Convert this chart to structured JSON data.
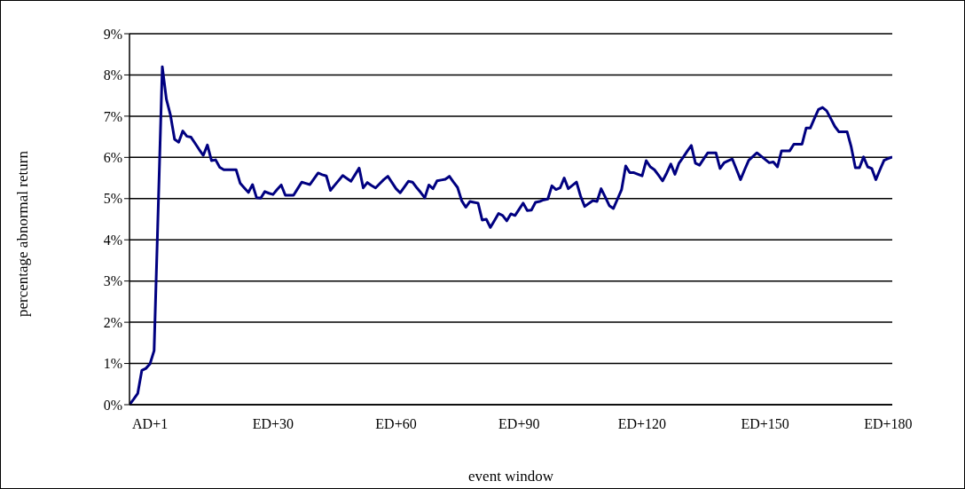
{
  "chart_data": {
    "type": "line",
    "xlabel": "event window",
    "ylabel": "percentage abnormal return",
    "color": "#000080",
    "grid": "y",
    "categories": [
      null,
      null,
      null,
      null,
      null,
      "AD+1",
      null,
      null,
      null,
      null,
      null,
      null,
      null,
      null,
      null,
      null,
      null,
      null,
      null,
      null,
      null,
      null,
      null,
      null,
      null,
      null,
      null,
      null,
      null,
      null,
      null,
      null,
      null,
      null,
      null,
      "ED+30",
      null,
      null,
      null,
      null,
      null,
      null,
      null,
      null,
      null,
      null,
      null,
      null,
      null,
      null,
      null,
      null,
      null,
      null,
      null,
      null,
      null,
      null,
      null,
      null,
      null,
      null,
      null,
      null,
      null,
      "ED+60",
      null,
      null,
      null,
      null,
      null,
      null,
      null,
      null,
      null,
      null,
      null,
      null,
      null,
      null,
      null,
      null,
      null,
      null,
      null,
      null,
      null,
      null,
      null,
      null,
      null,
      null,
      null,
      null,
      null,
      "ED+90",
      null,
      null,
      null,
      null,
      null,
      null,
      null,
      null,
      null,
      null,
      null,
      null,
      null,
      null,
      null,
      null,
      null,
      null,
      null,
      null,
      null,
      null,
      null,
      null,
      null,
      null,
      null,
      null,
      null,
      "ED+120",
      null,
      null,
      null,
      null,
      null,
      null,
      null,
      null,
      null,
      null,
      null,
      null,
      null,
      null,
      null,
      null,
      null,
      null,
      null,
      null,
      null,
      null,
      null,
      null,
      null,
      null,
      null,
      null,
      null,
      "ED+150",
      null,
      null,
      null,
      null,
      null,
      null,
      null,
      null,
      null,
      null,
      null,
      null,
      null,
      null,
      null,
      null,
      null,
      null,
      null,
      null,
      null,
      null,
      null,
      null,
      null,
      null,
      null,
      null,
      null,
      "ED+180",
      null
    ],
    "values": [
      0.0,
      0.13,
      0.27,
      0.83,
      0.88,
      0.99,
      1.31,
      4.75,
      8.2,
      7.41,
      7.02,
      6.44,
      6.37,
      6.64,
      6.51,
      6.49,
      6.34,
      6.19,
      6.05,
      6.3,
      5.92,
      5.94,
      5.76,
      5.7,
      5.7,
      5.7,
      5.7,
      5.37,
      5.26,
      5.15,
      5.34,
      5.02,
      5.01,
      5.17,
      5.13,
      5.1,
      5.22,
      5.33,
      5.08,
      5.08,
      5.08,
      5.24,
      5.4,
      5.37,
      5.34,
      5.48,
      5.62,
      5.58,
      5.55,
      5.2,
      5.32,
      5.44,
      5.56,
      5.49,
      5.42,
      5.58,
      5.74,
      5.26,
      5.39,
      5.32,
      5.26,
      5.36,
      5.46,
      5.54,
      5.39,
      5.24,
      5.14,
      5.28,
      5.42,
      5.4,
      5.27,
      5.15,
      5.02,
      5.33,
      5.24,
      5.43,
      5.45,
      5.47,
      5.54,
      5.4,
      5.27,
      4.95,
      4.79,
      4.93,
      4.91,
      4.89,
      4.48,
      4.5,
      4.3,
      4.47,
      4.64,
      4.59,
      4.46,
      4.63,
      4.59,
      4.74,
      4.89,
      4.71,
      4.72,
      4.91,
      4.93,
      4.97,
      4.99,
      5.31,
      5.22,
      5.26,
      5.5,
      5.24,
      5.32,
      5.4,
      5.06,
      4.81,
      4.88,
      4.95,
      4.93,
      5.24,
      5.04,
      4.83,
      4.76,
      4.99,
      5.22,
      5.79,
      5.63,
      5.63,
      5.59,
      5.55,
      5.92,
      5.77,
      5.7,
      5.57,
      5.43,
      5.62,
      5.84,
      5.59,
      5.86,
      6.0,
      6.15,
      6.29,
      5.86,
      5.81,
      5.96,
      6.11,
      6.11,
      6.11,
      5.73,
      5.87,
      5.92,
      5.96,
      5.71,
      5.46,
      5.7,
      5.93,
      6.02,
      6.11,
      6.03,
      5.95,
      5.87,
      5.89,
      5.77,
      6.16,
      6.16,
      6.16,
      6.32,
      6.32,
      6.32,
      6.71,
      6.71,
      6.94,
      7.16,
      7.21,
      7.13,
      6.94,
      6.75,
      6.62,
      6.62,
      6.62,
      6.25,
      5.75,
      5.75,
      6.01,
      5.77,
      5.73,
      5.46,
      5.7,
      5.93,
      5.97,
      6.01
    ],
    "ylim": [
      0,
      9
    ],
    "yticks": [
      {
        "value": 0,
        "label": "0%"
      },
      {
        "value": 1,
        "label": "1%"
      },
      {
        "value": 2,
        "label": "2%"
      },
      {
        "value": 3,
        "label": "3%"
      },
      {
        "value": 4,
        "label": "4%"
      },
      {
        "value": 5,
        "label": "5%"
      },
      {
        "value": 6,
        "label": "6%"
      },
      {
        "value": 7,
        "label": "7%"
      },
      {
        "value": 8,
        "label": "8%"
      },
      {
        "value": 9,
        "label": "9%"
      }
    ]
  }
}
